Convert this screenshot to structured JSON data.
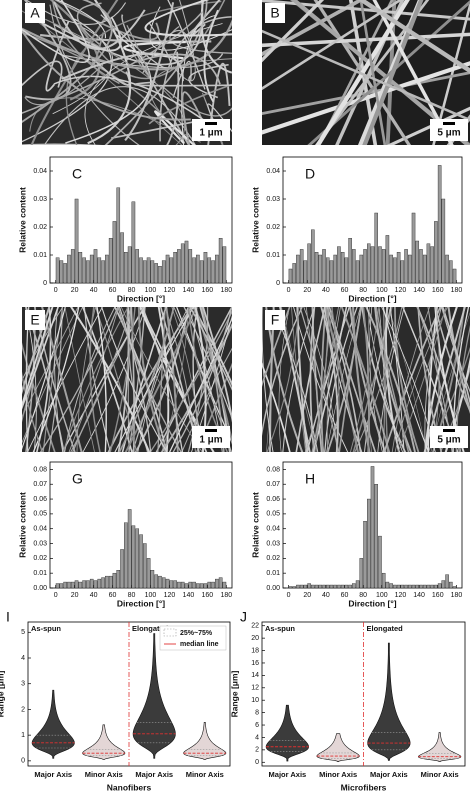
{
  "images": [
    {
      "label": "A",
      "scale": "1 μm"
    },
    {
      "label": "B",
      "scale": "5 μm"
    },
    {
      "label": "E",
      "scale": "1 μm"
    },
    {
      "label": "F",
      "scale": "5 μm"
    }
  ],
  "chart_data": [
    {
      "type": "histogram",
      "label": "C",
      "xlabel": "Direction [°]",
      "ylabel": "Relative content",
      "color": "#9a9a9a",
      "bins": [
        0,
        4,
        8,
        12,
        16,
        20,
        24,
        28,
        32,
        36,
        40,
        44,
        48,
        52,
        56,
        60,
        64,
        68,
        72,
        76,
        80,
        84,
        88,
        92,
        96,
        100,
        104,
        108,
        112,
        116,
        120,
        124,
        128,
        132,
        136,
        140,
        144,
        148,
        152,
        156,
        160,
        164,
        168,
        172,
        176,
        180
      ],
      "values": [
        0.009,
        0.008,
        0.007,
        0.01,
        0.012,
        0.03,
        0.011,
        0.009,
        0.008,
        0.01,
        0.012,
        0.009,
        0.008,
        0.01,
        0.016,
        0.022,
        0.034,
        0.018,
        0.011,
        0.013,
        0.029,
        0.012,
        0.009,
        0.008,
        0.009,
        0.008,
        0.007,
        0.006,
        0.008,
        0.01,
        0.009,
        0.011,
        0.012,
        0.014,
        0.015,
        0.012,
        0.009,
        0.01,
        0.008,
        0.011,
        0.009,
        0.008,
        0.01,
        0.016,
        0.013
      ],
      "xlim": [
        -6,
        186
      ],
      "ylim": [
        0,
        0.045
      ],
      "xticks": [
        0,
        20,
        40,
        60,
        80,
        100,
        120,
        140,
        160,
        180
      ],
      "yticks": [
        0,
        0.01,
        0.02,
        0.03,
        0.04
      ]
    },
    {
      "type": "histogram",
      "label": "D",
      "xlabel": "Direction [°]",
      "ylabel": "Relative content",
      "color": "#9a9a9a",
      "bins": [
        0,
        4,
        8,
        12,
        16,
        20,
        24,
        28,
        32,
        36,
        40,
        44,
        48,
        52,
        56,
        60,
        64,
        68,
        72,
        76,
        80,
        84,
        88,
        92,
        96,
        100,
        104,
        108,
        112,
        116,
        120,
        124,
        128,
        132,
        136,
        140,
        144,
        148,
        152,
        156,
        160,
        164,
        168,
        172,
        176,
        180
      ],
      "values": [
        0.005,
        0.007,
        0.01,
        0.012,
        0.008,
        0.014,
        0.019,
        0.011,
        0.01,
        0.012,
        0.009,
        0.008,
        0.01,
        0.013,
        0.011,
        0.009,
        0.016,
        0.012,
        0.008,
        0.01,
        0.012,
        0.014,
        0.013,
        0.025,
        0.013,
        0.012,
        0.017,
        0.01,
        0.009,
        0.011,
        0.008,
        0.012,
        0.01,
        0.025,
        0.015,
        0.012,
        0.01,
        0.014,
        0.013,
        0.022,
        0.042,
        0.03,
        0.01,
        0.008,
        0.005
      ],
      "xlim": [
        -6,
        186
      ],
      "ylim": [
        0,
        0.045
      ],
      "xticks": [
        0,
        20,
        40,
        60,
        80,
        100,
        120,
        140,
        160,
        180
      ],
      "yticks": [
        0,
        0.01,
        0.02,
        0.03,
        0.04
      ]
    },
    {
      "type": "histogram",
      "label": "G",
      "xlabel": "Direction [°]",
      "ylabel": "Relative content",
      "color": "#9a9a9a",
      "bins": [
        0,
        4,
        8,
        12,
        16,
        20,
        24,
        28,
        32,
        36,
        40,
        44,
        48,
        52,
        56,
        60,
        64,
        68,
        72,
        76,
        80,
        84,
        88,
        92,
        96,
        100,
        104,
        108,
        112,
        116,
        120,
        124,
        128,
        132,
        136,
        140,
        144,
        148,
        152,
        156,
        160,
        164,
        168,
        172,
        176,
        180
      ],
      "values": [
        0.003,
        0.003,
        0.004,
        0.004,
        0.004,
        0.005,
        0.004,
        0.005,
        0.005,
        0.006,
        0.005,
        0.006,
        0.007,
        0.008,
        0.008,
        0.01,
        0.012,
        0.026,
        0.044,
        0.053,
        0.042,
        0.04,
        0.036,
        0.03,
        0.02,
        0.012,
        0.009,
        0.008,
        0.007,
        0.006,
        0.005,
        0.005,
        0.004,
        0.004,
        0.003,
        0.004,
        0.004,
        0.003,
        0.003,
        0.003,
        0.004,
        0.004,
        0.006,
        0.007,
        0.004
      ],
      "xlim": [
        -6,
        186
      ],
      "ylim": [
        0,
        0.085
      ],
      "xticks": [
        0,
        20,
        40,
        60,
        80,
        100,
        120,
        140,
        160,
        180
      ],
      "yticks": [
        {
          "value": 0,
          "label": "0.00"
        },
        0.01,
        0.02,
        0.03,
        0.04,
        0.05,
        0.06,
        0.07,
        0.08
      ]
    },
    {
      "type": "histogram",
      "label": "H",
      "xlabel": "Direction [°]",
      "ylabel": "Relative content",
      "color": "#9a9a9a",
      "bins": [
        0,
        4,
        8,
        12,
        16,
        20,
        24,
        28,
        32,
        36,
        40,
        44,
        48,
        52,
        56,
        60,
        64,
        68,
        72,
        76,
        80,
        84,
        88,
        92,
        96,
        100,
        104,
        108,
        112,
        116,
        120,
        124,
        128,
        132,
        136,
        140,
        144,
        148,
        152,
        156,
        160,
        164,
        168,
        172,
        176,
        180
      ],
      "values": [
        0.001,
        0.001,
        0.002,
        0.002,
        0.002,
        0.003,
        0.002,
        0.002,
        0.002,
        0.002,
        0.002,
        0.002,
        0.002,
        0.002,
        0.002,
        0.002,
        0.002,
        0.003,
        0.005,
        0.02,
        0.045,
        0.06,
        0.082,
        0.07,
        0.035,
        0.01,
        0.004,
        0.003,
        0.002,
        0.002,
        0.002,
        0.002,
        0.002,
        0.002,
        0.002,
        0.002,
        0.002,
        0.002,
        0.002,
        0.002,
        0.003,
        0.005,
        0.009,
        0.004,
        0.001
      ],
      "xlim": [
        -6,
        186
      ],
      "ylim": [
        0,
        0.085
      ],
      "xticks": [
        0,
        20,
        40,
        60,
        80,
        100,
        120,
        140,
        160,
        180
      ],
      "yticks": [
        {
          "value": 0,
          "label": "0.00"
        },
        0.01,
        0.02,
        0.03,
        0.04,
        0.05,
        0.06,
        0.07,
        0.08
      ]
    },
    {
      "type": "violin",
      "label": "I",
      "xlabel": "Nanofibers",
      "ylabel": "Range [μm]",
      "categories": [
        "Major Axis",
        "Minor Axis",
        "Major Axis",
        "Minor Axis"
      ],
      "groups": [
        "As-spun",
        "Elongated"
      ],
      "colors": [
        "#3b3b3b",
        "#e3d6d6",
        "#3b3b3b",
        "#e3d6d6"
      ],
      "stats": {
        "min": [
          0.1,
          0.05,
          0.1,
          0.05
        ],
        "q1": [
          0.5,
          0.2,
          0.7,
          0.2
        ],
        "median": [
          0.7,
          0.3,
          1.05,
          0.3
        ],
        "q3": [
          1.0,
          0.45,
          1.5,
          0.45
        ],
        "max": [
          2.75,
          1.4,
          4.95,
          1.5
        ]
      },
      "legend": [
        "25%~75%",
        "median line"
      ],
      "ylim": [
        -0.2,
        5.4
      ],
      "yticks": [
        0,
        1,
        2,
        3,
        4,
        5
      ]
    },
    {
      "type": "violin",
      "label": "J",
      "xlabel": "Microfibers",
      "ylabel": "Range [μm]",
      "categories": [
        "Major Axis",
        "Minor Axis",
        "Major Axis",
        "Minor Axis"
      ],
      "groups": [
        "As-spun",
        "Elongated"
      ],
      "colors": [
        "#3b3b3b",
        "#e3d6d6",
        "#3b3b3b",
        "#e3d6d6"
      ],
      "stats": {
        "min": [
          0.2,
          0.1,
          0.3,
          0.1
        ],
        "q1": [
          1.7,
          0.6,
          2.0,
          0.6
        ],
        "median": [
          2.5,
          1.0,
          3.1,
          0.9
        ],
        "q3": [
          3.5,
          1.5,
          4.8,
          1.4
        ],
        "max": [
          9.2,
          4.6,
          19.2,
          4.8
        ]
      },
      "ylim": [
        -0.6,
        22.6
      ],
      "yticks": [
        0,
        2,
        4,
        6,
        8,
        10,
        12,
        14,
        16,
        18,
        20,
        22
      ]
    }
  ]
}
